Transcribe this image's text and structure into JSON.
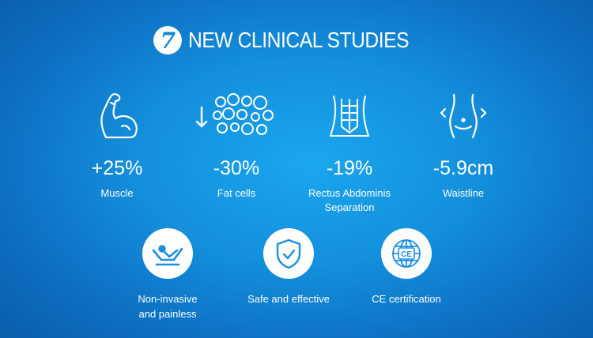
{
  "header": {
    "badge": "7",
    "title": "NEW CLINICAL STUDIES"
  },
  "stats": [
    {
      "icon": "muscle-arm-icon",
      "value": "+25%",
      "label": "Muscle"
    },
    {
      "icon": "fat-cells-icon",
      "value": "-30%",
      "label": "Fat cells"
    },
    {
      "icon": "abdominal-muscles-icon",
      "value": "-19%",
      "label_line1": "Rectus Abdominis",
      "label_line2": "Separation"
    },
    {
      "icon": "waistline-icon",
      "value": "-5.9cm",
      "label": "Waistline"
    }
  ],
  "features": [
    {
      "icon": "reclining-person-icon",
      "label_line1": "Non-invasive",
      "label_line2": "and painless"
    },
    {
      "icon": "shield-check-icon",
      "label": "Safe and effective"
    },
    {
      "icon": "ce-globe-icon",
      "label": "CE certification",
      "badge_text": "CE"
    }
  ],
  "colors": {
    "background": "#1490dc",
    "icon_accent": "#1a8fe0",
    "text": "#ffffff"
  }
}
